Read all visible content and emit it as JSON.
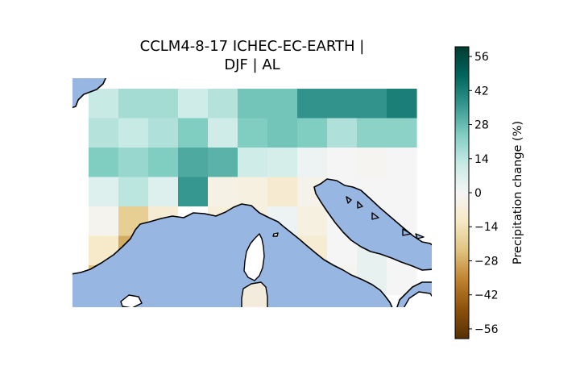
{
  "title": {
    "line1": "CCLM4-8-17 ICHEC-EC-EARTH |",
    "line2": "DJF | AL"
  },
  "colorbar": {
    "label": "Precipitation change (%)",
    "ticks": [
      "56",
      "42",
      "28",
      "14",
      "0",
      "−14",
      "−28",
      "−42",
      "−56"
    ],
    "range": [
      -60,
      60
    ],
    "colormap": "BrBG"
  },
  "colors": {
    "sea": "#98b6e2",
    "coastline": "#000000",
    "missing": "#ffffff"
  },
  "grid": {
    "columns": 11,
    "rows": 7,
    "values": [
      [
        12,
        18,
        18,
        10,
        15,
        26,
        26,
        37,
        37,
        37,
        42
      ],
      [
        15,
        12,
        16,
        24,
        10,
        24,
        26,
        24,
        16,
        22,
        22
      ],
      [
        24,
        20,
        24,
        32,
        30,
        10,
        8,
        2,
        0,
        -1,
        0
      ],
      [
        6,
        14,
        6,
        36,
        -4,
        -5,
        -9,
        -3,
        0,
        0,
        0
      ],
      [
        -2,
        -20,
        -8,
        null,
        -6,
        -5,
        2,
        -5,
        0,
        0,
        0
      ],
      [
        -10,
        -28,
        -8,
        -6,
        -4,
        -5,
        -16,
        -8,
        0,
        4,
        0
      ],
      [
        -24,
        -12,
        -10,
        -6,
        -4,
        -6,
        -6,
        -6,
        -2,
        4,
        0
      ]
    ]
  }
}
